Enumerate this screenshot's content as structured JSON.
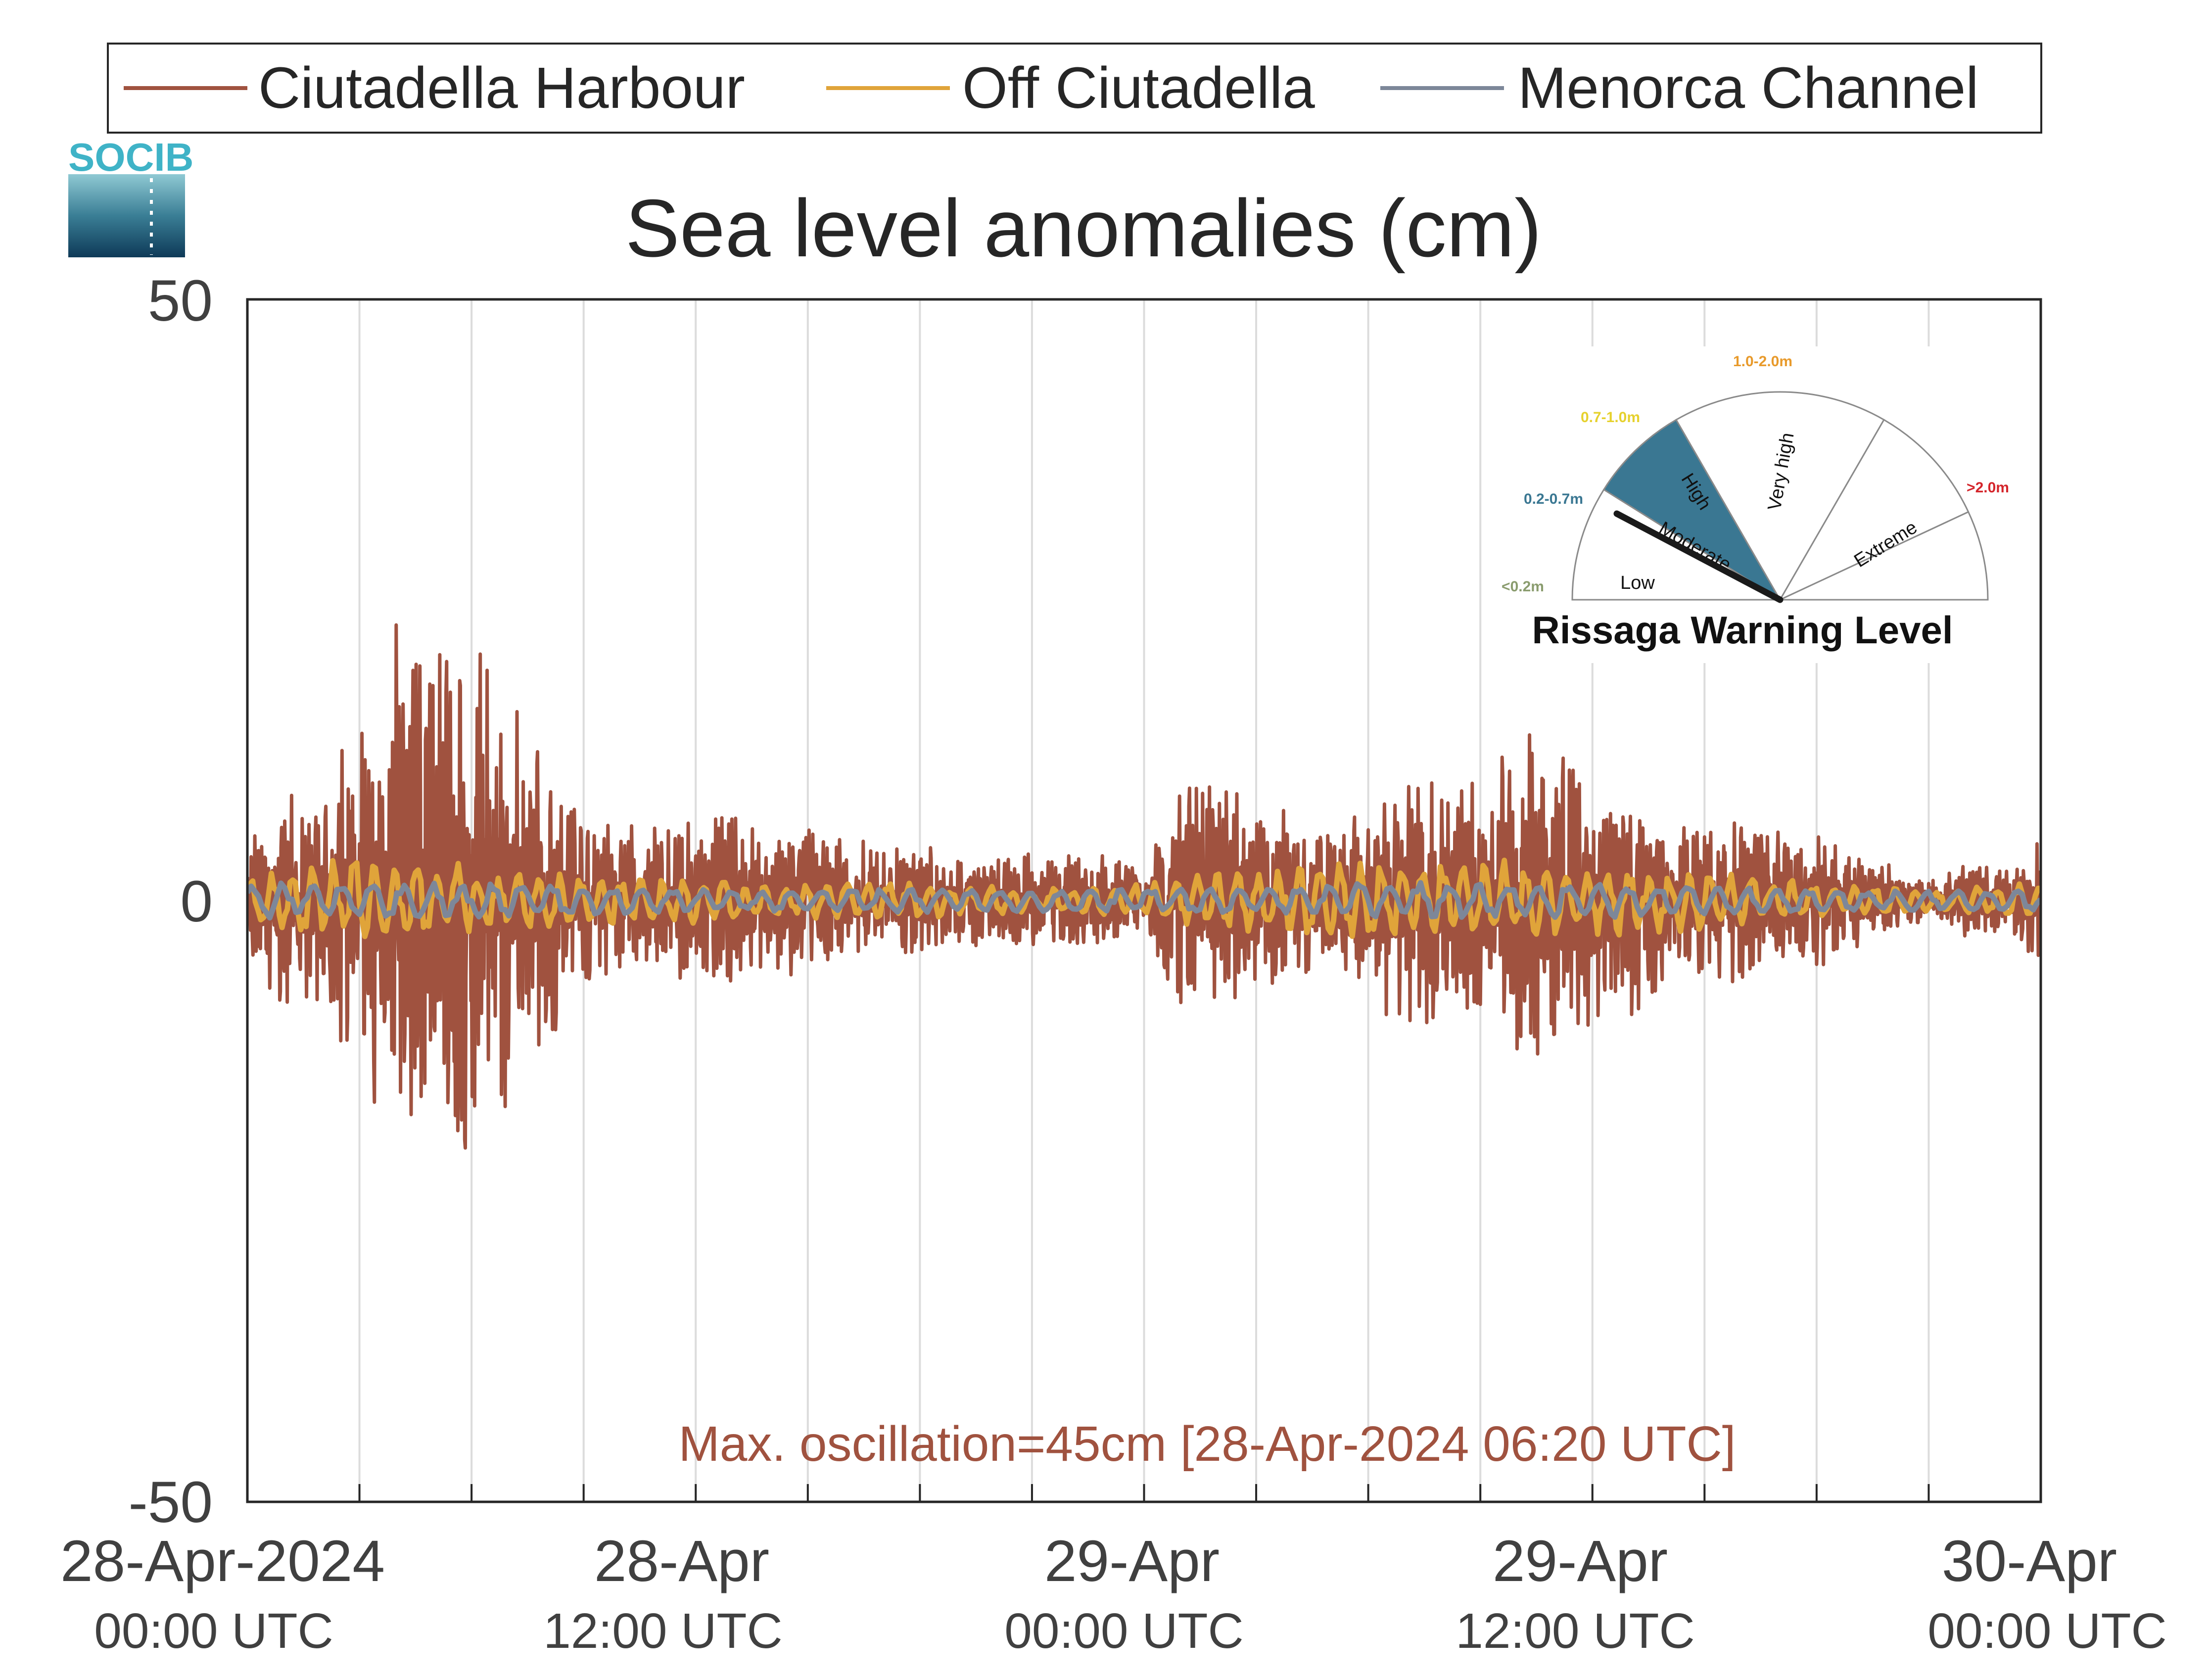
{
  "logo": {
    "text": "SOCIB"
  },
  "colors": {
    "harbour": "#A0523F",
    "off": "#E0A43A",
    "channel": "#7D8799",
    "annotation": "#A0523F",
    "low": "#8A9C6E",
    "moderate": "#3A7792",
    "high": "#E6D12D",
    "very_high": "#E89A2B",
    "extreme": "#D4252B"
  },
  "legend": {
    "items": [
      {
        "label": "Ciutadella Harbour",
        "color": "#A0523F"
      },
      {
        "label": "Off Ciutadella",
        "color": "#E0A43A"
      },
      {
        "label": "Menorca Channel",
        "color": "#7D8799"
      }
    ]
  },
  "chart_data": {
    "type": "line",
    "title": "Sea level anomalies (cm)",
    "xlabel": "",
    "ylabel": "",
    "ylim": [
      -50,
      50
    ],
    "yticks": [
      "50",
      "0",
      "-50"
    ],
    "xlim": [
      "2024-04-28 00:00",
      "2024-04-30 00:00"
    ],
    "xticks": [
      {
        "date": "28-Apr-2024",
        "time": "00:00 UTC"
      },
      {
        "date": "28-Apr",
        "time": "12:00 UTC"
      },
      {
        "date": "29-Apr",
        "time": "00:00 UTC"
      },
      {
        "date": "29-Apr",
        "time": "12:00 UTC"
      },
      {
        "date": "30-Apr",
        "time": "00:00 UTC"
      }
    ],
    "grid": "vertical lines every 3 hours",
    "legend_position": "top",
    "annotation": "Max. oscillation=45cm [28-Apr-2024 06:20 UTC]",
    "series": [
      {
        "name": "Ciutadella Harbour",
        "color": "#A0523F",
        "envelope_hours": [
          0,
          1,
          2,
          3,
          4,
          5,
          6,
          7,
          8,
          9,
          10,
          11,
          12,
          13,
          14,
          15,
          16,
          17,
          18,
          19,
          20,
          21,
          22,
          23,
          24,
          25,
          26,
          27,
          28,
          29,
          30,
          31,
          32,
          33,
          34,
          35,
          36,
          37,
          38,
          39,
          40,
          41,
          42,
          43,
          44,
          45,
          46,
          47,
          48
        ],
        "envelope_cm": [
          5,
          10,
          8,
          17,
          24,
          21,
          25,
          18,
          13,
          7,
          6,
          7,
          7,
          8,
          6,
          7,
          5,
          5,
          5,
          4,
          4,
          4,
          4,
          4,
          3,
          11,
          10,
          9,
          7,
          6,
          8,
          12,
          11,
          10,
          15,
          14,
          10,
          10,
          8,
          7,
          7,
          6,
          6,
          4,
          3,
          2,
          3,
          3,
          5
        ]
      },
      {
        "name": "Off Ciutadella",
        "color": "#E0A43A",
        "envelope_hours": [
          0,
          3,
          6,
          9,
          12,
          15,
          18,
          21,
          24,
          27,
          30,
          33,
          36,
          39,
          42,
          45,
          48
        ],
        "envelope_cm": [
          2,
          4,
          3,
          2,
          2,
          1.5,
          1.5,
          1,
          1.5,
          3,
          3.5,
          3.5,
          3,
          2.5,
          1.5,
          1,
          1.5
        ]
      },
      {
        "name": "Menorca Channel",
        "color": "#7D8799",
        "envelope_hours": [
          0,
          6,
          12,
          18,
          24,
          30,
          36,
          42,
          48
        ],
        "envelope_cm": [
          1.5,
          1.5,
          1,
          1,
          1,
          1.5,
          1.5,
          1,
          1
        ]
      }
    ]
  },
  "gauge": {
    "title": "Rissaga Warning Level",
    "current_level": "Moderate",
    "sectors": [
      {
        "name": "Low",
        "range": "<0.2m",
        "range_color": "#8A9C6E"
      },
      {
        "name": "Moderate",
        "range": "0.2-0.7m",
        "range_color": "#3A7792"
      },
      {
        "name": "High",
        "range": "0.7-1.0m",
        "range_color": "#E6D12D"
      },
      {
        "name": "Very high",
        "range": "1.0-2.0m",
        "range_color": "#E89A2B"
      },
      {
        "name": "Extreme",
        "range": ">2.0m",
        "range_color": "#D4252B"
      }
    ]
  }
}
